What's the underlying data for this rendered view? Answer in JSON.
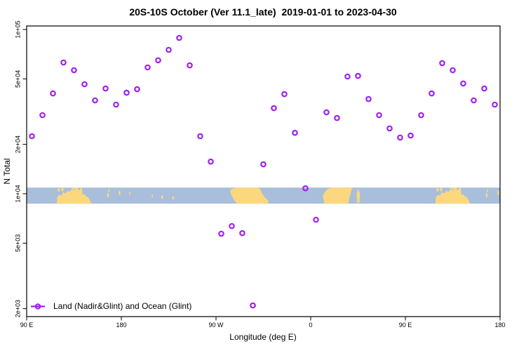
{
  "colors": {
    "marker": "#A020F0",
    "ocean": "#A9BEDB",
    "land": "#FBD87E",
    "axis": "#000000",
    "background": "#FFFFFF"
  },
  "legend": {
    "label": "Land (Nadir&Glint) and Ocean (Glint)"
  },
  "chart_data": {
    "type": "scatter",
    "title": "20S-10S October (Ver 11.1_late)  2019-01-01 to 2023-04-30",
    "xlabel": "Longitude (deg E)",
    "ylabel": "N Total",
    "y_scale": "log",
    "grid": "off",
    "legend_position": "bottom-left-inside",
    "x_axis": {
      "span_deg": 450,
      "ticks": [
        {
          "deg": 0,
          "label": "90 E"
        },
        {
          "deg": 90,
          "label": "180"
        },
        {
          "deg": 180,
          "label": "90 W"
        },
        {
          "deg": 270,
          "label": "0"
        },
        {
          "deg": 360,
          "label": "90 E"
        },
        {
          "deg": 450,
          "label": "180"
        }
      ]
    },
    "y_axis": {
      "range": [
        1740,
        106000
      ],
      "ticks": [
        {
          "value": 2000,
          "label": "2e+03"
        },
        {
          "value": 5000,
          "label": "5e+03"
        },
        {
          "value": 10000,
          "label": "1e+04"
        },
        {
          "value": 20000,
          "label": "2e+04"
        },
        {
          "value": 50000,
          "label": "5e+04"
        },
        {
          "value": 100000,
          "label": "1e+05"
        }
      ]
    },
    "series": [
      {
        "name": "Land (Nadir&Glint) and Ocean (Glint)",
        "marker": "open-circle",
        "x_deg": [
          5,
          15,
          25,
          35,
          45,
          55,
          65,
          75,
          85,
          95,
          105,
          115,
          125,
          135,
          145,
          155,
          165,
          175,
          185,
          195,
          205,
          215,
          225,
          235,
          245,
          255,
          265,
          275,
          285,
          295,
          305,
          315,
          325,
          335,
          345,
          355,
          365,
          375,
          385,
          395,
          405,
          415,
          425,
          435,
          445
        ],
        "values": [
          22400,
          30100,
          40800,
          63000,
          56500,
          46400,
          37000,
          43700,
          34900,
          41200,
          43300,
          58800,
          64900,
          75200,
          88900,
          60500,
          22400,
          15700,
          5710,
          6360,
          5760,
          2090,
          15100,
          33200,
          40400,
          23500,
          10800,
          6950,
          31300,
          28900,
          51700,
          52200,
          37700,
          30100,
          25000,
          22000,
          22600,
          30100,
          40800,
          62400,
          56500,
          46900,
          37000,
          43700,
          34900
        ]
      }
    ],
    "map_band": {
      "description": "20S-10S latitude strip world map",
      "value_top": 10900,
      "value_bottom": 8700,
      "land_polygons": [
        {
          "name": "australia",
          "repeat_deg": [
            0,
            360
          ],
          "points": [
            [
              28.5,
              1
            ],
            [
              29,
              0.6
            ],
            [
              31,
              0.45
            ],
            [
              33,
              0.5
            ],
            [
              34.5,
              0.28
            ],
            [
              37,
              0.36
            ],
            [
              39,
              0.2
            ],
            [
              41,
              0.26
            ],
            [
              43,
              0.1
            ],
            [
              45,
              0.18
            ],
            [
              47,
              0.08
            ],
            [
              50,
              0.16
            ],
            [
              51.5,
              0.02
            ],
            [
              52.6,
              0.02
            ],
            [
              53.2,
              0.45
            ],
            [
              55,
              0.4
            ],
            [
              56.5,
              0.55
            ],
            [
              58.5,
              0.6
            ],
            [
              60,
              0.78
            ],
            [
              61.5,
              1
            ]
          ]
        },
        {
          "name": "south-america",
          "repeat_deg": [
            0
          ],
          "points": [
            [
              200,
              1
            ],
            [
              197,
              0.75
            ],
            [
              194,
              0.4
            ],
            [
              193.5,
              0.15
            ],
            [
              196,
              0.05
            ],
            [
              200,
              0
            ],
            [
              220,
              0
            ],
            [
              222,
              0.1
            ],
            [
              224,
              0.4
            ],
            [
              227,
              0.65
            ],
            [
              230,
              0.82
            ],
            [
              229,
              1
            ]
          ]
        },
        {
          "name": "africa",
          "repeat_deg": [
            0
          ],
          "points": [
            [
              283,
              1
            ],
            [
              281.5,
              0.55
            ],
            [
              283,
              0.3
            ],
            [
              286,
              0.1
            ],
            [
              290,
              0
            ],
            [
              309.5,
              0
            ],
            [
              308,
              0.35
            ],
            [
              306.5,
              0.7
            ],
            [
              305.5,
              1
            ]
          ]
        },
        {
          "name": "madagascar",
          "repeat_deg": [
            0
          ],
          "points": [
            [
              313.5,
              0.4
            ],
            [
              315,
              0.08
            ],
            [
              316.8,
              0.35
            ],
            [
              316.3,
              0.95
            ],
            [
              314.2,
              0.95
            ]
          ]
        }
      ],
      "land_specks": [
        [
          29.5,
          0.05,
          2,
          0.18
        ],
        [
          33,
          0.02,
          2,
          0.2
        ],
        [
          43,
          0,
          6,
          0.1
        ],
        [
          76.5,
          0.35,
          1.5,
          0.25
        ],
        [
          77.5,
          0.08,
          1,
          0.2
        ],
        [
          87.5,
          0.2,
          1.5,
          0.25
        ],
        [
          97.5,
          0.25,
          1,
          0.2
        ],
        [
          119,
          0.45,
          1,
          0.18
        ],
        [
          128,
          0.5,
          1.5,
          0.2
        ],
        [
          138.5,
          0.55,
          1.5,
          0.18
        ],
        [
          389.5,
          0.05,
          2,
          0.18
        ],
        [
          393,
          0.02,
          2,
          0.2
        ],
        [
          403,
          0,
          6,
          0.1
        ],
        [
          436.5,
          0.35,
          1.5,
          0.25
        ],
        [
          437.5,
          0.08,
          1,
          0.2
        ],
        [
          447.5,
          0.2,
          1.5,
          0.25
        ]
      ]
    }
  }
}
